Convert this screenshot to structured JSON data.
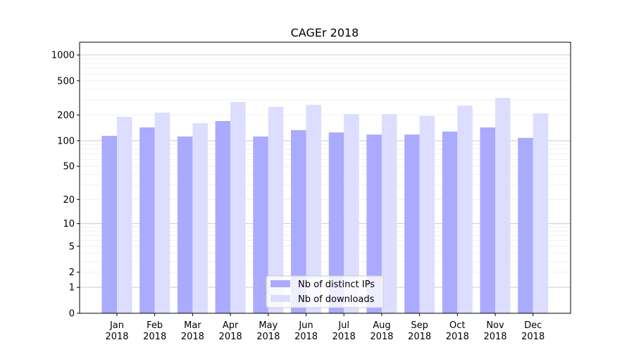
{
  "chart_data": {
    "type": "bar",
    "title": "CAGEr 2018",
    "xlabel": "",
    "ylabel": "",
    "yscale": "log(y+1)",
    "ylim": [
      0,
      1200
    ],
    "yticks": [
      0,
      1,
      2,
      5,
      10,
      20,
      50,
      100,
      200,
      500,
      1000
    ],
    "grid": true,
    "legend_position": "lower-center",
    "categories": [
      "Jan\n2018",
      "Feb\n2018",
      "Mar\n2018",
      "Apr\n2018",
      "May\n2018",
      "Jun\n2018",
      "Jul\n2018",
      "Aug\n2018",
      "Sep\n2018",
      "Oct\n2018",
      "Nov\n2018",
      "Dec\n2018"
    ],
    "series": [
      {
        "name": "Nb of distinct IPs",
        "color": "#aaaaff",
        "values": [
          114,
          143,
          112,
          170,
          112,
          133,
          125,
          118,
          118,
          128,
          143,
          108
        ]
      },
      {
        "name": "Nb of downloads",
        "color": "#ddddff",
        "values": [
          190,
          213,
          160,
          283,
          248,
          262,
          205,
          205,
          194,
          257,
          317,
          209
        ]
      }
    ]
  }
}
